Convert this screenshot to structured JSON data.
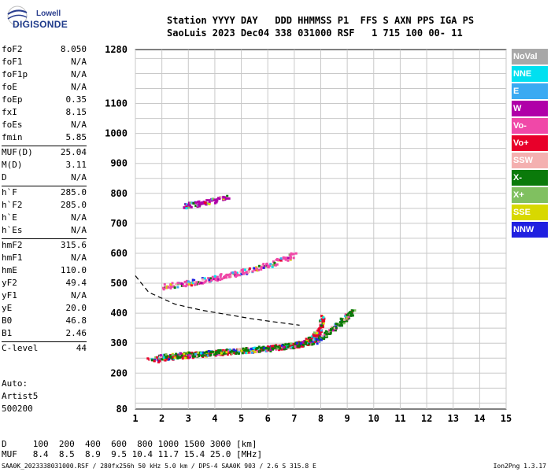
{
  "logo": {
    "line1": "Lowell",
    "line2": "DIGISONDE"
  },
  "header": {
    "line1": "Station YYYY DAY   DDD HHMMSS P1  FFS S AXN PPS IGA PS",
    "line2": "SaoLuis 2023 Dec04 338 031000 RSF   1 715 100 00- 11"
  },
  "params": [
    {
      "name": "foF2",
      "value": "8.050"
    },
    {
      "name": "foF1",
      "value": "N/A"
    },
    {
      "name": "foF1p",
      "value": "N/A"
    },
    {
      "name": "foE",
      "value": "N/A"
    },
    {
      "name": "foEp",
      "value": "0.35"
    },
    {
      "name": "fxI",
      "value": "8.15"
    },
    {
      "name": "foEs",
      "value": "N/A"
    },
    {
      "name": "fmin",
      "value": "5.85"
    },
    {
      "name": "MUF(D)",
      "value": "25.04",
      "sep": true
    },
    {
      "name": "M(D)",
      "value": "3.11"
    },
    {
      "name": "D",
      "value": "N/A"
    },
    {
      "name": "h`F",
      "value": "285.0",
      "sep": true
    },
    {
      "name": "h`F2",
      "value": "285.0"
    },
    {
      "name": "h`E",
      "value": "N/A"
    },
    {
      "name": "h`Es",
      "value": "N/A"
    },
    {
      "name": "hmF2",
      "value": "315.6",
      "sep": true
    },
    {
      "name": "hmF1",
      "value": "N/A"
    },
    {
      "name": "hmE",
      "value": "110.0"
    },
    {
      "name": "yF2",
      "value": "49.4"
    },
    {
      "name": "yF1",
      "value": "N/A"
    },
    {
      "name": "yE",
      "value": "20.0"
    },
    {
      "name": "B0",
      "value": "46.8"
    },
    {
      "name": "B1",
      "value": "2.46"
    },
    {
      "name": "C-level",
      "value": "44",
      "sep": true
    }
  ],
  "auto": {
    "line1": "Auto:",
    "line2": "Artist5",
    "line3": "500200"
  },
  "legend": [
    {
      "label": "NoVal",
      "color": "#a8a8a8"
    },
    {
      "label": "NNE",
      "color": "#00e0f0"
    },
    {
      "label": "E",
      "color": "#3aaaf2"
    },
    {
      "label": "W",
      "color": "#b000a8"
    },
    {
      "label": "Vo-",
      "color": "#f048a8"
    },
    {
      "label": "Vo+",
      "color": "#e8002a"
    },
    {
      "label": "SSW",
      "color": "#f4b0b0"
    },
    {
      "label": "X-",
      "color": "#0a7a0a"
    },
    {
      "label": "X+",
      "color": "#80c060"
    },
    {
      "label": "SSE",
      "color": "#d8d800"
    },
    {
      "label": "NNW",
      "color": "#2020e0"
    }
  ],
  "bottom": {
    "row1": "D     100  200  400  600  800 1000 1500 3000 [km]",
    "row2": "MUF   8.4  8.5  8.9  9.5 10.4 11.7 15.4 25.0 [MHz]"
  },
  "footer": {
    "left": "SAA0K_2023338031000.RSF / 280fx256h 50 kHz 5.0 km / DPS-4 SAA0K 903 / 2.6 S 315.8 E",
    "right": "Ion2Png 1.3.17"
  },
  "chart_data": {
    "type": "scatter",
    "xlim": [
      1,
      15
    ],
    "ylim": [
      80,
      1280
    ],
    "xticks": [
      1,
      2,
      3,
      4,
      5,
      6,
      7,
      8,
      9,
      10,
      11,
      12,
      13,
      14,
      15
    ],
    "yticks": [
      80,
      200,
      300,
      400,
      500,
      600,
      700,
      800,
      900,
      1000,
      1100,
      1280
    ],
    "grid": true,
    "traces": [
      {
        "name": "o-trace F2",
        "color": "#e8002a",
        "x": [
          1.5,
          2.5,
          3.5,
          4.5,
          5.5,
          6.5,
          7.2,
          7.6,
          7.9,
          8.05
        ],
        "y": [
          245,
          258,
          266,
          274,
          282,
          290,
          300,
          315,
          340,
          390
        ]
      },
      {
        "name": "x-trace F2",
        "color": "#0a7a0a",
        "x": [
          1.8,
          3,
          4,
          5,
          6,
          7,
          7.8,
          8.3,
          8.8,
          9.2
        ],
        "y": [
          255,
          264,
          270,
          278,
          286,
          296,
          310,
          340,
          380,
          410
        ]
      },
      {
        "name": "second hop",
        "color": "#f048a8",
        "x": [
          2,
          3,
          4,
          5,
          6,
          7
        ],
        "y": [
          490,
          505,
          520,
          540,
          565,
          600
        ]
      },
      {
        "name": "third hop",
        "color": "#b000a8",
        "x": [
          2.8,
          3.5,
          4.5
        ],
        "y": [
          760,
          770,
          790
        ]
      }
    ],
    "profile": {
      "name": "electron density profile",
      "color": "#000000",
      "x": [
        1.0,
        1.5,
        2.5,
        3.5,
        4.5,
        5.5,
        6.5,
        7.2
      ],
      "y": [
        525,
        470,
        430,
        410,
        395,
        380,
        368,
        360
      ]
    }
  }
}
